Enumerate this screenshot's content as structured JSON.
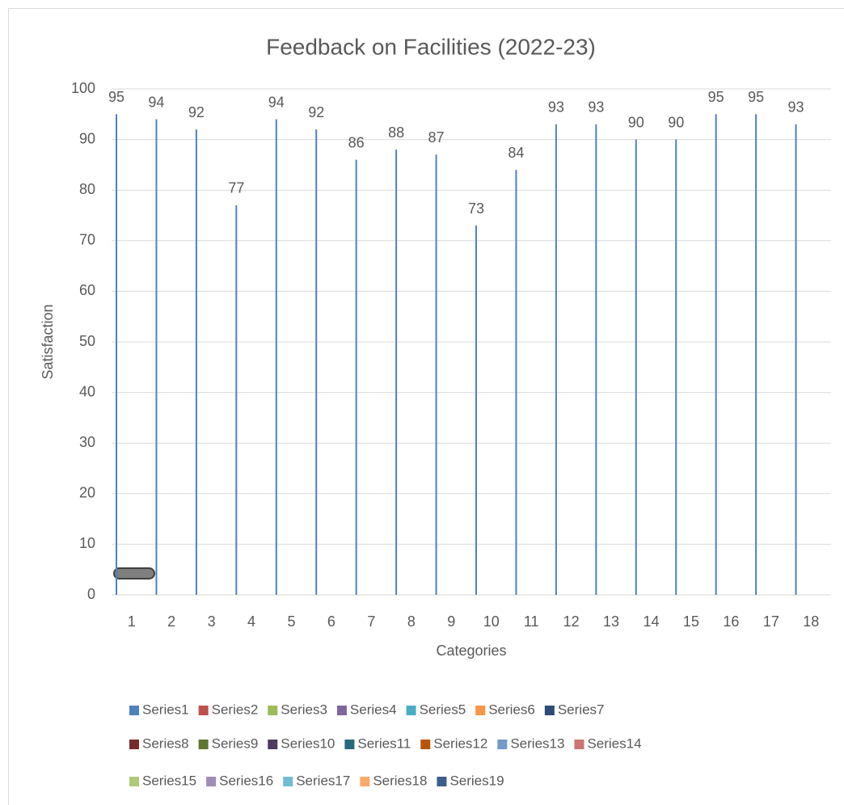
{
  "chart_data": {
    "type": "bar",
    "title": "Feedback on Facilities (2022-23)",
    "x_label": "Categories",
    "y_label": "Satisfaction",
    "categories": [
      "1",
      "2",
      "3",
      "4",
      "5",
      "6",
      "7",
      "8",
      "9",
      "10",
      "11",
      "12",
      "13",
      "14",
      "15",
      "16",
      "17",
      "18"
    ],
    "series": [
      {
        "name": "Series1",
        "color": "#4f81bd",
        "values": [
          95,
          94,
          92,
          77,
          94,
          92,
          86,
          88,
          87,
          73,
          84,
          93,
          93,
          90,
          90,
          95,
          95,
          93
        ]
      },
      {
        "name": "Series2",
        "color": "#c0504d"
      },
      {
        "name": "Series3",
        "color": "#9bbb59"
      },
      {
        "name": "Series4",
        "color": "#8064a2"
      },
      {
        "name": "Series5",
        "color": "#4bacc6"
      },
      {
        "name": "Series6",
        "color": "#f79646"
      },
      {
        "name": "Series7",
        "color": "#2c4d75"
      },
      {
        "name": "Series8",
        "color": "#772c2a"
      },
      {
        "name": "Series9",
        "color": "#5f7530"
      },
      {
        "name": "Series10",
        "color": "#4d3b62"
      },
      {
        "name": "Series11",
        "color": "#276a7c"
      },
      {
        "name": "Series12",
        "color": "#b65708"
      },
      {
        "name": "Series13",
        "color": "#729aca"
      },
      {
        "name": "Series14",
        "color": "#cd7371"
      },
      {
        "name": "Series15",
        "color": "#afc97a"
      },
      {
        "name": "Series16",
        "color": "#a08db7"
      },
      {
        "name": "Series17",
        "color": "#6fbdd3"
      },
      {
        "name": "Series18",
        "color": "#f9ab6b"
      },
      {
        "name": "Series19",
        "color": "#3a5f8b"
      }
    ],
    "ylim": [
      0,
      100
    ],
    "yticks": [
      0,
      10,
      20,
      30,
      40,
      50,
      60,
      70,
      80,
      90,
      100
    ],
    "grid": true,
    "legend": "bottom"
  }
}
